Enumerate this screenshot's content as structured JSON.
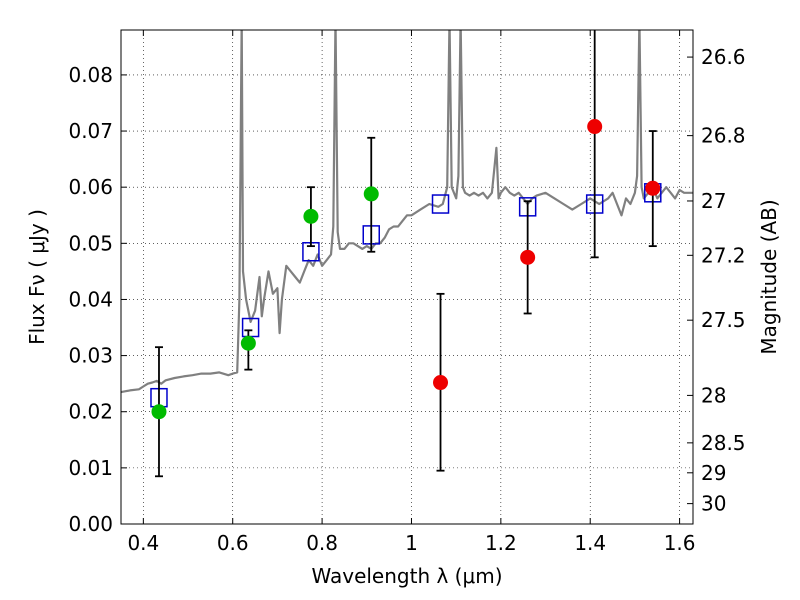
{
  "chart_data": {
    "type": "scatter",
    "xlabel": "Wavelength  λ (μm)",
    "ylabel": "Flux  Fν  ( μJy )",
    "y2label": "Magnitude (AB)",
    "xlim": [
      0.35,
      1.63
    ],
    "ylim": [
      0.0,
      0.088
    ],
    "grid": true,
    "x_ticks": [
      {
        "value": 0.4,
        "label": "0.4"
      },
      {
        "value": 0.6,
        "label": "0.6"
      },
      {
        "value": 0.8,
        "label": "0.8"
      },
      {
        "value": 1.0,
        "label": "1"
      },
      {
        "value": 1.2,
        "label": "1.2"
      },
      {
        "value": 1.4,
        "label": "1.4"
      },
      {
        "value": 1.6,
        "label": "1.6"
      }
    ],
    "y_ticks": [
      {
        "value": 0.0,
        "label": "0.00"
      },
      {
        "value": 0.01,
        "label": "0.01"
      },
      {
        "value": 0.02,
        "label": "0.02"
      },
      {
        "value": 0.03,
        "label": "0.03"
      },
      {
        "value": 0.04,
        "label": "0.04"
      },
      {
        "value": 0.05,
        "label": "0.05"
      },
      {
        "value": 0.06,
        "label": "0.06"
      },
      {
        "value": 0.07,
        "label": "0.07"
      },
      {
        "value": 0.08,
        "label": "0.08"
      }
    ],
    "y2_ticks": [
      {
        "mag": 26.6,
        "label": "26.6"
      },
      {
        "mag": 26.8,
        "label": "26.8"
      },
      {
        "mag": 27.0,
        "label": "27"
      },
      {
        "mag": 27.2,
        "label": "27.2"
      },
      {
        "mag": 27.5,
        "label": "27.5"
      },
      {
        "mag": 28.0,
        "label": "28"
      },
      {
        "mag": 28.5,
        "label": "28.5"
      },
      {
        "mag": 29.0,
        "label": "29"
      },
      {
        "mag": 30.0,
        "label": "30"
      }
    ],
    "series": [
      {
        "type": "line",
        "color": "#808080",
        "points": [
          [
            0.35,
            0.0235
          ],
          [
            0.37,
            0.0238
          ],
          [
            0.39,
            0.024
          ],
          [
            0.4,
            0.0245
          ],
          [
            0.41,
            0.025
          ],
          [
            0.42,
            0.0252
          ],
          [
            0.43,
            0.0255
          ],
          [
            0.44,
            0.025
          ],
          [
            0.45,
            0.0256
          ],
          [
            0.47,
            0.026
          ],
          [
            0.49,
            0.0263
          ],
          [
            0.51,
            0.0265
          ],
          [
            0.53,
            0.0268
          ],
          [
            0.55,
            0.0268
          ],
          [
            0.57,
            0.027
          ],
          [
            0.59,
            0.0265
          ],
          [
            0.6,
            0.0268
          ],
          [
            0.61,
            0.027
          ],
          [
            0.615,
            0.04
          ],
          [
            0.62,
            0.09
          ],
          [
            0.623,
            0.045
          ],
          [
            0.63,
            0.04
          ],
          [
            0.64,
            0.036
          ],
          [
            0.65,
            0.038
          ],
          [
            0.66,
            0.044
          ],
          [
            0.665,
            0.037
          ],
          [
            0.67,
            0.04
          ],
          [
            0.68,
            0.045
          ],
          [
            0.69,
            0.041
          ],
          [
            0.7,
            0.042
          ],
          [
            0.705,
            0.034
          ],
          [
            0.71,
            0.04
          ],
          [
            0.72,
            0.046
          ],
          [
            0.73,
            0.045
          ],
          [
            0.74,
            0.044
          ],
          [
            0.75,
            0.043
          ],
          [
            0.76,
            0.045
          ],
          [
            0.77,
            0.047
          ],
          [
            0.78,
            0.046
          ],
          [
            0.79,
            0.048
          ],
          [
            0.8,
            0.046
          ],
          [
            0.81,
            0.047
          ],
          [
            0.82,
            0.048
          ],
          [
            0.825,
            0.053
          ],
          [
            0.83,
            0.09
          ],
          [
            0.835,
            0.052
          ],
          [
            0.84,
            0.049
          ],
          [
            0.85,
            0.049
          ],
          [
            0.86,
            0.05
          ],
          [
            0.87,
            0.05
          ],
          [
            0.88,
            0.0495
          ],
          [
            0.89,
            0.049
          ],
          [
            0.9,
            0.0495
          ],
          [
            0.91,
            0.049
          ],
          [
            0.92,
            0.05
          ],
          [
            0.93,
            0.05
          ],
          [
            0.94,
            0.051
          ],
          [
            0.95,
            0.0525
          ],
          [
            0.96,
            0.053
          ],
          [
            0.97,
            0.053
          ],
          [
            0.98,
            0.054
          ],
          [
            0.99,
            0.055
          ],
          [
            1.0,
            0.055
          ],
          [
            1.02,
            0.056
          ],
          [
            1.04,
            0.057
          ],
          [
            1.06,
            0.0565
          ],
          [
            1.07,
            0.057
          ],
          [
            1.08,
            0.06
          ],
          [
            1.085,
            0.09
          ],
          [
            1.09,
            0.06
          ],
          [
            1.1,
            0.058
          ],
          [
            1.105,
            0.062
          ],
          [
            1.11,
            0.09
          ],
          [
            1.115,
            0.06
          ],
          [
            1.12,
            0.059
          ],
          [
            1.13,
            0.0585
          ],
          [
            1.14,
            0.059
          ],
          [
            1.15,
            0.0585
          ],
          [
            1.16,
            0.059
          ],
          [
            1.17,
            0.058
          ],
          [
            1.18,
            0.059
          ],
          [
            1.19,
            0.067
          ],
          [
            1.195,
            0.058
          ],
          [
            1.2,
            0.059
          ],
          [
            1.21,
            0.06
          ],
          [
            1.22,
            0.059
          ],
          [
            1.23,
            0.0585
          ],
          [
            1.24,
            0.059
          ],
          [
            1.25,
            0.058
          ],
          [
            1.26,
            0.057
          ],
          [
            1.27,
            0.058
          ],
          [
            1.28,
            0.0585
          ],
          [
            1.3,
            0.059
          ],
          [
            1.32,
            0.058
          ],
          [
            1.34,
            0.057
          ],
          [
            1.36,
            0.056
          ],
          [
            1.38,
            0.057
          ],
          [
            1.4,
            0.058
          ],
          [
            1.42,
            0.057
          ],
          [
            1.44,
            0.058
          ],
          [
            1.45,
            0.059
          ],
          [
            1.46,
            0.057
          ],
          [
            1.47,
            0.055
          ],
          [
            1.48,
            0.058
          ],
          [
            1.49,
            0.057
          ],
          [
            1.5,
            0.059
          ],
          [
            1.505,
            0.062
          ],
          [
            1.51,
            0.09
          ],
          [
            1.515,
            0.06
          ],
          [
            1.52,
            0.058
          ],
          [
            1.53,
            0.059
          ],
          [
            1.54,
            0.06
          ],
          [
            1.55,
            0.058
          ],
          [
            1.56,
            0.059
          ],
          [
            1.57,
            0.06
          ],
          [
            1.58,
            0.059
          ],
          [
            1.59,
            0.058
          ],
          [
            1.6,
            0.0595
          ],
          [
            1.61,
            0.059
          ],
          [
            1.63,
            0.059
          ]
        ]
      },
      {
        "type": "scatter",
        "marker": "square",
        "color": "#0000cc",
        "points": [
          [
            0.435,
            0.0225
          ],
          [
            0.64,
            0.035
          ],
          [
            0.775,
            0.0485
          ],
          [
            0.91,
            0.0515
          ],
          [
            1.065,
            0.057
          ],
          [
            1.26,
            0.0565
          ],
          [
            1.41,
            0.057
          ],
          [
            1.54,
            0.059
          ]
        ]
      },
      {
        "type": "scatter",
        "marker": "circle",
        "color": "#00bb00",
        "points": [
          {
            "x": 0.435,
            "y": 0.02,
            "err": [
              0.0085,
              0.0315
            ]
          },
          {
            "x": 0.635,
            "y": 0.0322,
            "err": [
              0.0275,
              0.0345
            ]
          },
          {
            "x": 0.775,
            "y": 0.0548,
            "err": [
              0.0495,
              0.06
            ]
          },
          {
            "x": 0.91,
            "y": 0.0588,
            "err": [
              0.0485,
              0.0688
            ]
          }
        ]
      },
      {
        "type": "scatter",
        "marker": "circle",
        "color": "#ee0000",
        "points": [
          {
            "x": 1.065,
            "y": 0.0252,
            "err": [
              0.0095,
              0.041
            ]
          },
          {
            "x": 1.26,
            "y": 0.0475,
            "err": [
              0.0375,
              0.0575
            ]
          },
          {
            "x": 1.41,
            "y": 0.0708,
            "err": [
              0.0475,
              0.089
            ]
          },
          {
            "x": 1.54,
            "y": 0.0598,
            "err": [
              0.0495,
              0.07
            ]
          }
        ]
      }
    ]
  }
}
